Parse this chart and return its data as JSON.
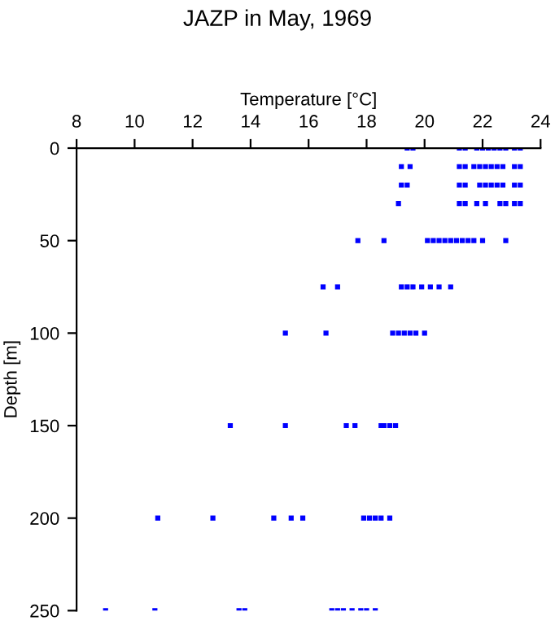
{
  "chart_data": {
    "type": "scatter",
    "title": "JAZP in May, 1969",
    "xlabel": "Temperature [°C]",
    "ylabel": "Depth [m]",
    "series": [
      {
        "color": "#0000ff",
        "x": [
          19.4,
          19.6,
          21.2,
          21.4,
          21.8,
          22.0,
          22.2,
          22.4,
          22.6,
          22.8,
          23.1,
          23.3,
          19.2,
          19.5,
          21.2,
          21.4,
          21.7,
          21.9,
          22.1,
          22.3,
          22.5,
          22.7,
          23.1,
          23.3,
          19.2,
          19.4,
          21.2,
          21.4,
          21.9,
          22.1,
          22.3,
          22.5,
          22.7,
          23.1,
          23.3,
          19.1,
          21.2,
          21.4,
          21.8,
          22.1,
          22.6,
          22.8,
          23.1,
          23.3,
          17.7,
          18.6,
          20.1,
          20.3,
          20.5,
          20.7,
          20.9,
          21.1,
          21.3,
          21.5,
          21.7,
          22.0,
          22.8,
          16.5,
          17.0,
          19.2,
          19.4,
          19.6,
          19.9,
          20.2,
          20.5,
          20.9,
          15.2,
          16.6,
          18.9,
          19.1,
          19.3,
          19.5,
          19.7,
          20.0,
          13.3,
          15.2,
          17.3,
          17.6,
          18.5,
          18.6,
          18.8,
          19.0,
          10.8,
          12.7,
          14.8,
          15.4,
          15.8,
          17.9,
          18.1,
          18.3,
          18.5,
          18.8,
          9.0,
          10.7,
          13.6,
          13.8,
          16.8,
          17.0,
          17.2,
          17.5,
          17.8,
          18.0,
          18.3
        ],
        "values": [
          0,
          0,
          0,
          0,
          0,
          0,
          0,
          0,
          0,
          0,
          0,
          0,
          10,
          10,
          10,
          10,
          10,
          10,
          10,
          10,
          10,
          10,
          10,
          10,
          20,
          20,
          20,
          20,
          20,
          20,
          20,
          20,
          20,
          20,
          20,
          30,
          30,
          30,
          30,
          30,
          30,
          30,
          30,
          30,
          50,
          50,
          50,
          50,
          50,
          50,
          50,
          50,
          50,
          50,
          50,
          50,
          50,
          75,
          75,
          75,
          75,
          75,
          75,
          75,
          75,
          75,
          100,
          100,
          100,
          100,
          100,
          100,
          100,
          100,
          150,
          150,
          150,
          150,
          150,
          150,
          150,
          150,
          200,
          200,
          200,
          200,
          200,
          200,
          200,
          200,
          200,
          200,
          250,
          250,
          250,
          250,
          250,
          250,
          250,
          250,
          250,
          250,
          250
        ]
      }
    ],
    "xlim": [
      8,
      24
    ],
    "xticks": [
      8,
      10,
      12,
      14,
      16,
      18,
      20,
      22,
      24
    ],
    "ylim": [
      250,
      0
    ],
    "yticks": [
      0,
      50,
      100,
      150,
      200,
      250
    ],
    "marker": "square",
    "grid": false,
    "legend": false
  }
}
